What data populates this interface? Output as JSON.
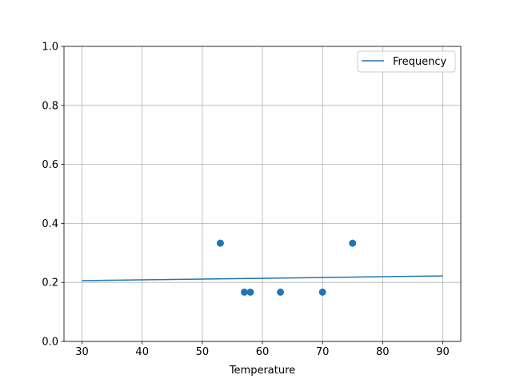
{
  "chart_data": {
    "type": "scatter",
    "title": "",
    "xlabel": "Temperature",
    "ylabel": "",
    "xlim": [
      27,
      93
    ],
    "ylim": [
      0,
      1.0
    ],
    "grid": true,
    "legend_placement": "upper right",
    "x_ticks": [
      30,
      40,
      50,
      60,
      70,
      80,
      90
    ],
    "x_tick_labels": [
      "30",
      "40",
      "50",
      "60",
      "70",
      "80",
      "90"
    ],
    "y_ticks": [
      0,
      0.2,
      0.4,
      0.6,
      0.8,
      1.0
    ],
    "y_tick_labels": [
      "0.0",
      "0.2",
      "0.4",
      "0.6",
      "0.8",
      "1.0"
    ],
    "points": {
      "x": [
        53,
        57,
        58,
        63,
        70,
        75
      ],
      "y": [
        0.333,
        0.167,
        0.167,
        0.167,
        0.167,
        0.333
      ],
      "color": "#1f77b4"
    },
    "line": {
      "name": "Frequency",
      "x": [
        30,
        90
      ],
      "y": [
        0.206,
        0.222
      ],
      "color": "#1f77b4"
    }
  }
}
